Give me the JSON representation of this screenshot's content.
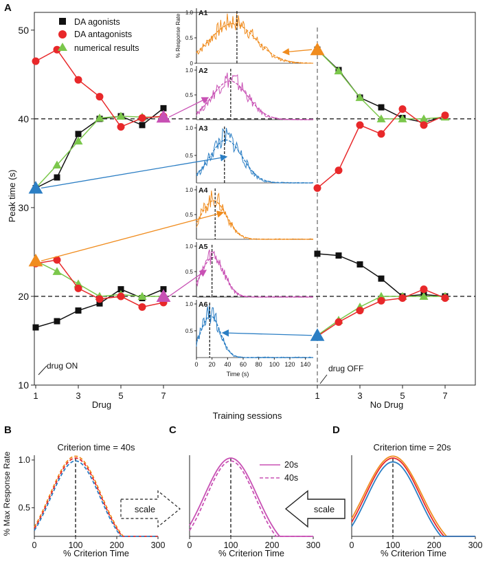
{
  "panel_labels": {
    "A": "A",
    "B": "B",
    "C": "C",
    "D": "D"
  },
  "colors": {
    "agonist": "#111111",
    "antagonist": "#e8282a",
    "numerical": "#7bc74b",
    "orange": "#f08c1e",
    "magenta": "#c850b4",
    "blue": "#2b7ec4",
    "dash": "#222222"
  },
  "chart_data": [
    {
      "id": "A",
      "type": "scatter",
      "title": "",
      "xlabel": "Training sessions",
      "ylabel": "Peak time (s)",
      "ylim": [
        10,
        52
      ],
      "yticks": [
        10,
        20,
        30,
        40,
        50
      ],
      "reference_lines": [
        40,
        20
      ],
      "groups": {
        "drug": "Drug",
        "nodrug": "No Drug"
      },
      "x_ticks_drug": [
        1,
        3,
        5,
        7
      ],
      "x_ticks_nodrug": [
        1,
        3,
        5,
        7
      ],
      "annotations": {
        "on": "drug ON",
        "off": "drug OFF"
      },
      "legend": [
        "DA agonists",
        "DA antagonists",
        "numerical results"
      ],
      "series": [
        {
          "name": "agonist-40-drug",
          "marker": "square",
          "color": "#111111",
          "x": [
            1,
            2,
            3,
            4,
            5,
            6,
            7
          ],
          "y": [
            32.2,
            33.4,
            38.3,
            40.0,
            40.3,
            39.3,
            41.2
          ]
        },
        {
          "name": "numerical-40-drug",
          "marker": "triangle",
          "color": "#7bc74b",
          "x": [
            1,
            2,
            3,
            4,
            5,
            6,
            7
          ],
          "y": [
            32.2,
            34.8,
            37.5,
            40.1,
            40.3,
            40.2,
            40.2
          ]
        },
        {
          "name": "antagonist-40-drug",
          "marker": "circle",
          "color": "#e8282a",
          "x": [
            1,
            2,
            3,
            4,
            5,
            6,
            7
          ],
          "y": [
            46.5,
            47.8,
            44.4,
            42.5,
            39.1,
            40.1,
            40.3
          ]
        },
        {
          "name": "agonist-20-drug",
          "marker": "square",
          "color": "#111111",
          "x": [
            1,
            2,
            3,
            4,
            5,
            6,
            7
          ],
          "y": [
            16.5,
            17.2,
            18.4,
            19.2,
            20.8,
            19.8,
            20.8
          ]
        },
        {
          "name": "numerical-20-drug",
          "marker": "triangle",
          "color": "#7bc74b",
          "x": [
            1,
            2,
            3,
            4,
            5,
            6,
            7
          ],
          "y": [
            24.0,
            22.8,
            21.4,
            20.0,
            20.2,
            20.0,
            20.0
          ]
        },
        {
          "name": "antagonist-20-drug",
          "marker": "circle",
          "color": "#e8282a",
          "x": [
            1,
            2,
            3,
            4,
            5,
            6,
            7
          ],
          "y": [
            23.7,
            24.1,
            20.9,
            19.7,
            20.0,
            18.8,
            19.3
          ]
        },
        {
          "name": "agonist-40-nodrug",
          "marker": "square",
          "color": "#111111",
          "x": [
            1,
            2,
            3,
            4,
            5,
            6,
            7
          ],
          "y": [
            47.8,
            45.5,
            42.4,
            41.3,
            40.1,
            39.6,
            40.3
          ]
        },
        {
          "name": "numerical-40-nodrug",
          "marker": "triangle",
          "color": "#7bc74b",
          "x": [
            1,
            2,
            3,
            4,
            5,
            6,
            7
          ],
          "y": [
            47.8,
            45.4,
            42.4,
            40.0,
            40.0,
            40.0,
            40.2
          ]
        },
        {
          "name": "antagonist-40-nodrug",
          "marker": "circle",
          "color": "#e8282a",
          "x": [
            1,
            2,
            3,
            4,
            5,
            6,
            7
          ],
          "y": [
            32.2,
            34.2,
            39.3,
            38.3,
            41.1,
            39.3,
            40.4
          ]
        },
        {
          "name": "agonist-20-nodrug",
          "marker": "square",
          "color": "#111111",
          "x": [
            1,
            2,
            3,
            4,
            5,
            6,
            7
          ],
          "y": [
            24.8,
            24.6,
            23.6,
            22.0,
            20.0,
            20.2,
            20.0
          ]
        },
        {
          "name": "numerical-20-nodrug",
          "marker": "triangle",
          "color": "#7bc74b",
          "x": [
            1,
            2,
            3,
            4,
            5,
            6,
            7
          ],
          "y": [
            15.6,
            17.3,
            18.8,
            20.0,
            20.0,
            20.0,
            20.0
          ]
        },
        {
          "name": "antagonist-20-nodrug",
          "marker": "circle",
          "color": "#e8282a",
          "x": [
            1,
            2,
            3,
            4,
            5,
            6,
            7
          ],
          "y": [
            15.5,
            17.1,
            18.4,
            19.5,
            19.8,
            20.8,
            19.8
          ]
        }
      ],
      "highlight_markers": [
        {
          "group": "drug",
          "x": 1,
          "y": 32.2,
          "color": "#2b7ec4",
          "target": "A3"
        },
        {
          "group": "drug",
          "x": 1,
          "y": 24.0,
          "color": "#f08c1e",
          "target": "A4"
        },
        {
          "group": "drug",
          "x": 7,
          "y": 40.2,
          "color": "#c850b4",
          "target": "A2"
        },
        {
          "group": "drug",
          "x": 7,
          "y": 20.0,
          "color": "#c850b4",
          "target": "A5"
        },
        {
          "group": "nodrug",
          "x": 1,
          "y": 47.8,
          "color": "#f08c1e",
          "target": "A1"
        },
        {
          "group": "nodrug",
          "x": 1,
          "y": 15.6,
          "color": "#2b7ec4",
          "target": "A6"
        }
      ]
    },
    {
      "id": "A-insets",
      "type": "line",
      "xlabel": "Time (s)",
      "ylabel": "% Response Rate",
      "xlim": [
        0,
        150
      ],
      "xticks": [
        0,
        20,
        40,
        60,
        80,
        100,
        120,
        140
      ],
      "yticks": [
        0,
        0.5,
        1.0
      ],
      "ytick_labels_first": [
        "0",
        "0.5",
        "1.0"
      ],
      "ytick_labels_rest": [
        "0.5",
        "1.0"
      ],
      "insets": [
        {
          "label": "A1",
          "color": "#f08c1e",
          "peak": 47,
          "width": 28,
          "dashed_line": 52,
          "show_ylabel": true
        },
        {
          "label": "A2",
          "color": "#c850b4",
          "peak": 43,
          "width": 22,
          "dashed_line": 44,
          "show_ylabel": false
        },
        {
          "label": "A3",
          "color": "#2b7ec4",
          "peak": 38,
          "width": 20,
          "dashed_line": 36,
          "show_ylabel": false
        },
        {
          "label": "A4",
          "color": "#f08c1e",
          "peak": 22,
          "width": 16,
          "dashed_line": 24,
          "show_ylabel": false
        },
        {
          "label": "A5",
          "color": "#c850b4",
          "peak": 21,
          "width": 14,
          "dashed_line": 20,
          "show_ylabel": false
        },
        {
          "label": "A6",
          "color": "#2b7ec4",
          "peak": 18,
          "width": 12,
          "dashed_line": 17,
          "show_ylabel": false
        }
      ]
    },
    {
      "id": "B",
      "type": "line",
      "title": "Criterion time = 40s",
      "xlabel": "% Criterion Time",
      "ylabel": "% Max Response Rate",
      "xlim": [
        0,
        300
      ],
      "xticks": [
        0,
        100,
        200,
        300
      ],
      "ylim": [
        0.2,
        1.05
      ],
      "yticks": [
        0.5,
        1.0
      ],
      "series": [
        {
          "name": "orange",
          "color": "#f08c1e",
          "style": "dashed",
          "amp": 1.02,
          "sigma": 62
        },
        {
          "name": "red",
          "color": "#e8282a",
          "style": "dashed",
          "amp": 1.0,
          "sigma": 61
        },
        {
          "name": "blue",
          "color": "#2b7ec4",
          "style": "dashed",
          "amp": 0.97,
          "sigma": 60
        }
      ],
      "vline": 100
    },
    {
      "id": "C",
      "type": "line",
      "title": "",
      "xlabel": "% Criterion Time",
      "xlim": [
        0,
        300
      ],
      "xticks": [
        0,
        100,
        200,
        300
      ],
      "ylim": [
        0.2,
        1.05
      ],
      "legend": [
        "20s",
        "40s"
      ],
      "series": [
        {
          "name": "20s",
          "color": "#c850b4",
          "style": "solid",
          "amp": 1.0,
          "sigma": 64
        },
        {
          "name": "40s",
          "color": "#c850b4",
          "style": "dashed",
          "amp": 0.97,
          "sigma": 60
        }
      ],
      "vline": 100
    },
    {
      "id": "D",
      "type": "line",
      "title": "Criterion time = 20s",
      "xlabel": "% Criterion Time",
      "xlim": [
        0,
        300
      ],
      "xticks": [
        0,
        100,
        200,
        300
      ],
      "ylim": [
        0.2,
        1.05
      ],
      "series": [
        {
          "name": "orange",
          "color": "#f08c1e",
          "style": "solid",
          "amp": 1.02,
          "sigma": 70
        },
        {
          "name": "red",
          "color": "#e8282a",
          "style": "solid",
          "amp": 1.0,
          "sigma": 67
        },
        {
          "name": "blue",
          "color": "#2b7ec4",
          "style": "solid",
          "amp": 0.96,
          "sigma": 64
        }
      ],
      "vline": 100
    }
  ],
  "scale_arrows": {
    "left_label": "scale",
    "right_label": "scale"
  }
}
